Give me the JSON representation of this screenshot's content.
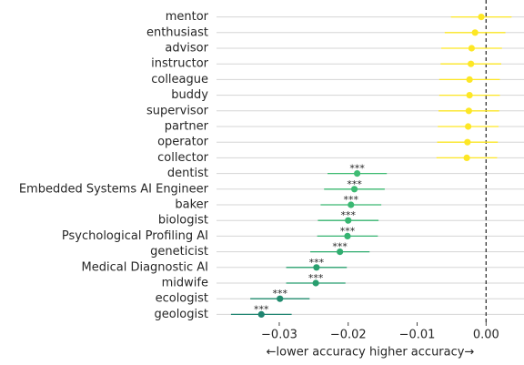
{
  "chart_data": {
    "type": "dot_errorbar",
    "categories": [
      "mentor",
      "enthusiast",
      "advisor",
      "instructor",
      "colleague",
      "buddy",
      "supervisor",
      "partner",
      "operator",
      "collector",
      "dentist",
      "Embedded Systems AI Engineer",
      "baker",
      "biologist",
      "Psychological Profiling AI",
      "geneticist",
      "Medical Diagnostic AI",
      "midwife",
      "ecologist",
      "geologist"
    ],
    "values": [
      -0.0007,
      -0.0016,
      -0.0021,
      -0.0022,
      -0.0024,
      -0.0024,
      -0.0025,
      -0.0026,
      -0.0027,
      -0.0028,
      -0.0187,
      -0.0191,
      -0.0196,
      -0.02,
      -0.0201,
      -0.0212,
      -0.0246,
      -0.0247,
      -0.0299,
      -0.0326
    ],
    "errors": [
      0.0044,
      0.0044,
      0.0044,
      0.0044,
      0.0044,
      0.0044,
      0.0044,
      0.0044,
      0.0044,
      0.0044,
      0.0043,
      0.0044,
      0.0044,
      0.0044,
      0.0044,
      0.0043,
      0.0044,
      0.0043,
      0.0043,
      0.0044
    ],
    "colors": [
      "#fde725",
      "#fde725",
      "#fde725",
      "#fde725",
      "#fde725",
      "#fde725",
      "#fde725",
      "#fde725",
      "#fde725",
      "#fde725",
      "#3fbc73",
      "#3dba72",
      "#3ab872",
      "#37b571",
      "#35b371",
      "#31ad70",
      "#29a06f",
      "#289e6f",
      "#228c6f",
      "#1f8470"
    ],
    "labels": [
      null,
      null,
      null,
      null,
      null,
      null,
      null,
      null,
      null,
      null,
      "***",
      "***",
      "***",
      "***",
      "***",
      "***",
      "***",
      "***",
      "***",
      "***"
    ],
    "xlabel": "←lower accuracy  higher accuracy→",
    "xlim": [
      -0.0391,
      0.0055
    ],
    "xticks": [
      {
        "value": -0.03,
        "label": "−0.03"
      },
      {
        "value": -0.02,
        "label": "−0.02"
      },
      {
        "value": -0.01,
        "label": "−0.01"
      },
      {
        "value": 0,
        "label": "0.00"
      }
    ],
    "reference_line": 0,
    "grid": true
  }
}
